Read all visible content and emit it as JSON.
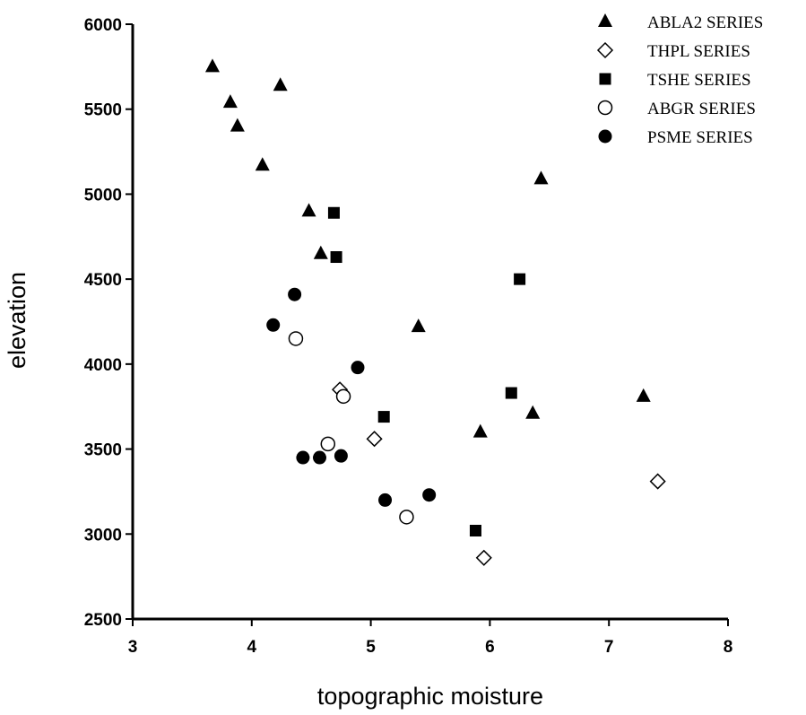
{
  "chart_data": {
    "type": "scatter",
    "xlabel": "topographic moisture",
    "ylabel": "elevation",
    "xlim": [
      3,
      8
    ],
    "ylim": [
      2500,
      6000
    ],
    "xticks": [
      3,
      4,
      5,
      6,
      7,
      8
    ],
    "yticks": [
      2500,
      3000,
      3500,
      4000,
      4500,
      5000,
      5500,
      6000
    ],
    "grid": false,
    "legend_position": "top-right",
    "series": [
      {
        "name": "ABLA2 SERIES",
        "marker": "triangle-filled",
        "points": [
          {
            "x": 3.67,
            "y": 5750
          },
          {
            "x": 3.82,
            "y": 5540
          },
          {
            "x": 3.88,
            "y": 5400
          },
          {
            "x": 4.24,
            "y": 5640
          },
          {
            "x": 4.09,
            "y": 5170
          },
          {
            "x": 4.48,
            "y": 4900
          },
          {
            "x": 4.58,
            "y": 4650
          },
          {
            "x": 5.4,
            "y": 4220
          },
          {
            "x": 5.92,
            "y": 3600
          },
          {
            "x": 6.36,
            "y": 3710
          },
          {
            "x": 6.43,
            "y": 5090
          },
          {
            "x": 7.29,
            "y": 3810
          }
        ]
      },
      {
        "name": "THPL SERIES",
        "marker": "diamond-open",
        "points": [
          {
            "x": 4.74,
            "y": 3850
          },
          {
            "x": 5.03,
            "y": 3560
          },
          {
            "x": 5.95,
            "y": 2860
          },
          {
            "x": 7.41,
            "y": 3310
          }
        ]
      },
      {
        "name": "TSHE SERIES",
        "marker": "square-filled",
        "points": [
          {
            "x": 4.69,
            "y": 4890
          },
          {
            "x": 4.71,
            "y": 4630
          },
          {
            "x": 6.25,
            "y": 4500
          },
          {
            "x": 6.18,
            "y": 3830
          },
          {
            "x": 5.11,
            "y": 3690
          },
          {
            "x": 5.88,
            "y": 3020
          }
        ]
      },
      {
        "name": "ABGR SERIES",
        "marker": "circle-open",
        "points": [
          {
            "x": 4.37,
            "y": 4150
          },
          {
            "x": 4.77,
            "y": 3810
          },
          {
            "x": 4.64,
            "y": 3530
          },
          {
            "x": 5.3,
            "y": 3100
          }
        ]
      },
      {
        "name": "PSME SERIES",
        "marker": "circle-filled",
        "points": [
          {
            "x": 4.36,
            "y": 4410
          },
          {
            "x": 4.18,
            "y": 4230
          },
          {
            "x": 4.89,
            "y": 3980
          },
          {
            "x": 4.43,
            "y": 3450
          },
          {
            "x": 4.57,
            "y": 3450
          },
          {
            "x": 4.75,
            "y": 3460
          },
          {
            "x": 5.12,
            "y": 3200
          },
          {
            "x": 5.49,
            "y": 3230
          }
        ]
      }
    ]
  }
}
